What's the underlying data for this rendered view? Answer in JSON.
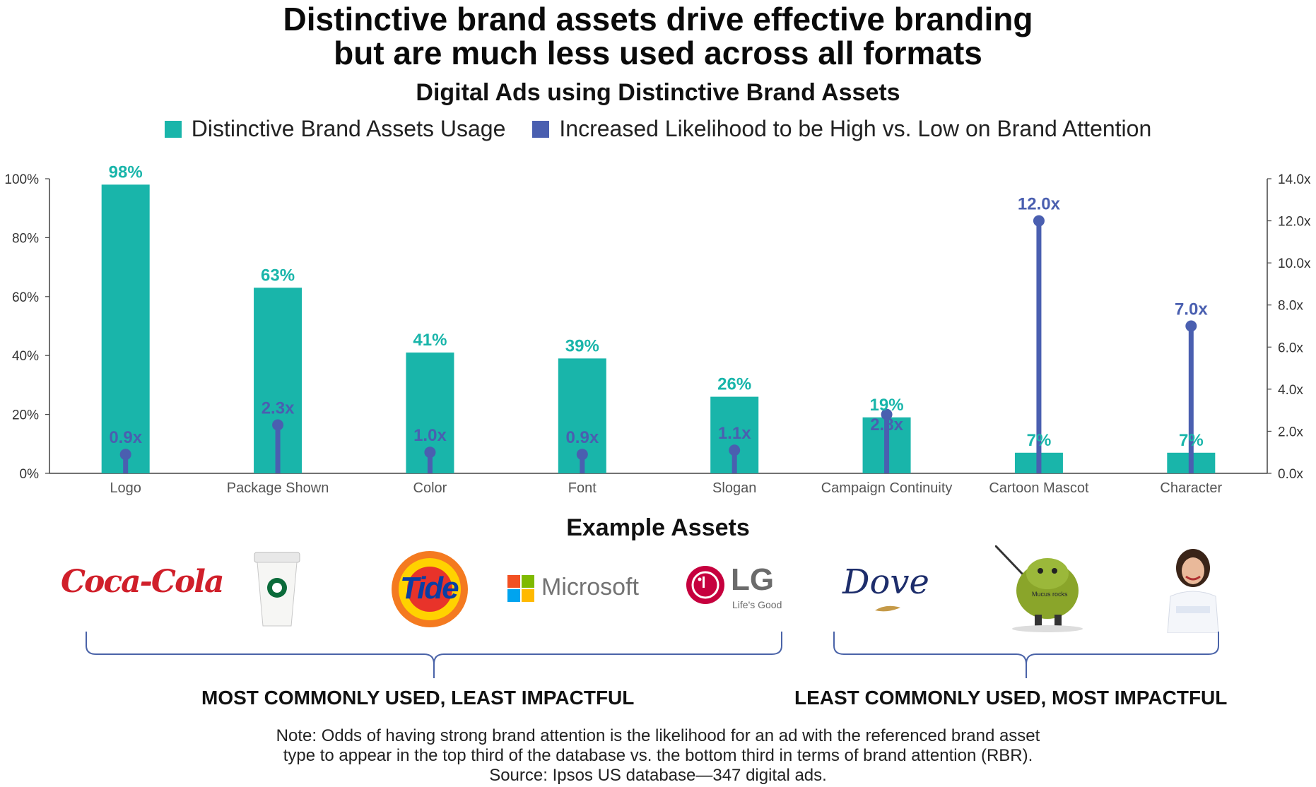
{
  "header": {
    "title_line1": "Distinctive brand assets drive effective branding",
    "title_line2": "but are much less used across all formats",
    "subtitle": "Digital Ads using Distinctive Brand Assets"
  },
  "legend": {
    "bars_label": "Distinctive Brand Assets Usage",
    "lollipop_label": "Increased Likelihood to be High vs. Low on Brand Attention"
  },
  "colors": {
    "bars": "#19b5aa",
    "lollipop": "#4a5fb0",
    "axis": "#444444"
  },
  "chart_data": {
    "type": "bar",
    "categories": [
      "Logo",
      "Package Shown",
      "Color",
      "Font",
      "Slogan",
      "Campaign Continuity",
      "Cartoon Mascot",
      "Character"
    ],
    "series": [
      {
        "name": "Distinctive Brand Assets Usage",
        "type": "bar",
        "axis": "left",
        "values": [
          98,
          63,
          41,
          39,
          26,
          19,
          7,
          7
        ],
        "labels": [
          "98%",
          "63%",
          "41%",
          "39%",
          "26%",
          "19%",
          "7%",
          "7%"
        ]
      },
      {
        "name": "Increased Likelihood to be High vs. Low on Brand Attention",
        "type": "lollipop",
        "axis": "right",
        "values": [
          0.9,
          2.3,
          1.0,
          0.9,
          1.1,
          2.8,
          12.0,
          7.0
        ],
        "labels": [
          "0.9x",
          "2.3x",
          "1.0x",
          "0.9x",
          "1.1x",
          "2.8x",
          "12.0x",
          "7.0x"
        ]
      }
    ],
    "ylim_left": [
      0,
      100
    ],
    "ylim_right": [
      0,
      14
    ],
    "left_ticks": [
      "0%",
      "20%",
      "40%",
      "60%",
      "80%",
      "100%"
    ],
    "right_ticks": [
      "0.0x",
      "2.0x",
      "4.0x",
      "6.0x",
      "8.0x",
      "10.0x",
      "12.0x",
      "14.0x"
    ],
    "grid": false
  },
  "assets": {
    "title": "Example Assets",
    "logos": {
      "coca_cola": "Coca-Cola",
      "tide": "Tide",
      "microsoft": "Microsoft",
      "lg": "LG",
      "lg_tagline": "Life's Good",
      "dove": "Dove",
      "mascot_text": "Mucus rocks"
    },
    "group_left": "MOST COMMONLY USED, LEAST IMPACTFUL",
    "group_right": "LEAST COMMONLY USED, MOST IMPACTFUL"
  },
  "note": {
    "line1": "Note: Odds of having strong brand attention is the likelihood for an ad with the referenced brand asset",
    "line2": "type to appear in the top third of the database vs. the bottom third in terms of brand attention (RBR).",
    "line3": "Source: Ipsos US database—347 digital ads."
  }
}
